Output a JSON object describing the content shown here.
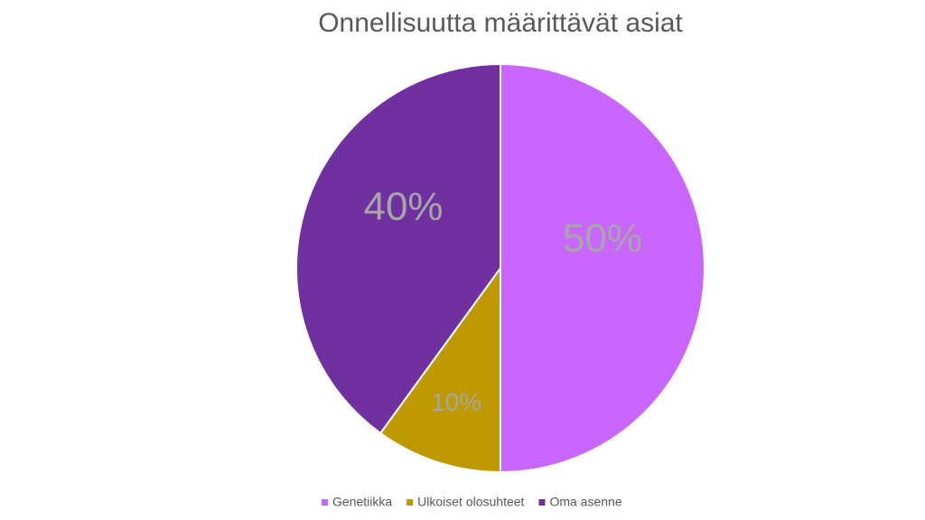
{
  "chart_data": {
    "type": "pie",
    "title": "Onnellisuutta määrittävät asiat",
    "categories": [
      "Genetiikka",
      "Ulkoiset olosuhteet",
      "Oma asenne"
    ],
    "values": [
      50,
      10,
      40
    ],
    "value_labels": [
      "50%",
      "10%",
      "40%"
    ],
    "colors": [
      "#c966ff",
      "#bf9900",
      "#7030a0"
    ]
  }
}
